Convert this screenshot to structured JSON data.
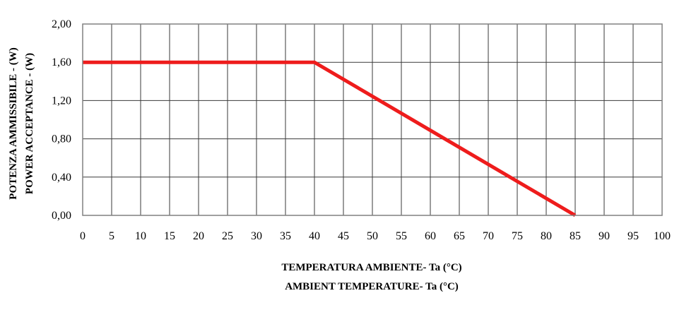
{
  "chart_data": {
    "type": "line",
    "title": "",
    "xlabel": [
      "TEMPERATURA AMBIENTE- Ta (°C)",
      "AMBIENT TEMPERATURE- Ta (°C)"
    ],
    "ylabel": [
      "POTENZA AMMISSIBILE - (W)",
      "POWER ACCEPTANCE - (W)"
    ],
    "xlim": [
      0,
      100
    ],
    "ylim": [
      0,
      2
    ],
    "x_ticks": [
      0,
      5,
      10,
      15,
      20,
      25,
      30,
      35,
      40,
      45,
      50,
      55,
      60,
      65,
      70,
      75,
      80,
      85,
      90,
      95,
      100
    ],
    "x_tick_labels": [
      "0",
      "5",
      "10",
      "15",
      "20",
      "25",
      "30",
      "35",
      "40",
      "45",
      "50",
      "55",
      "60",
      "65",
      "70",
      "75",
      "80",
      "85",
      "90",
      "95",
      "100"
    ],
    "y_ticks": [
      0,
      0.4,
      0.8,
      1.2,
      1.6,
      2.0
    ],
    "y_tick_labels": [
      "0,00",
      "0,40",
      "0,80",
      "1,20",
      "1,60",
      "2,00"
    ],
    "grid": true,
    "legend": "none",
    "series": [
      {
        "x": [
          0,
          40,
          85
        ],
        "y": [
          1.6,
          1.6,
          0
        ],
        "color": "#ee1c1c"
      }
    ]
  }
}
